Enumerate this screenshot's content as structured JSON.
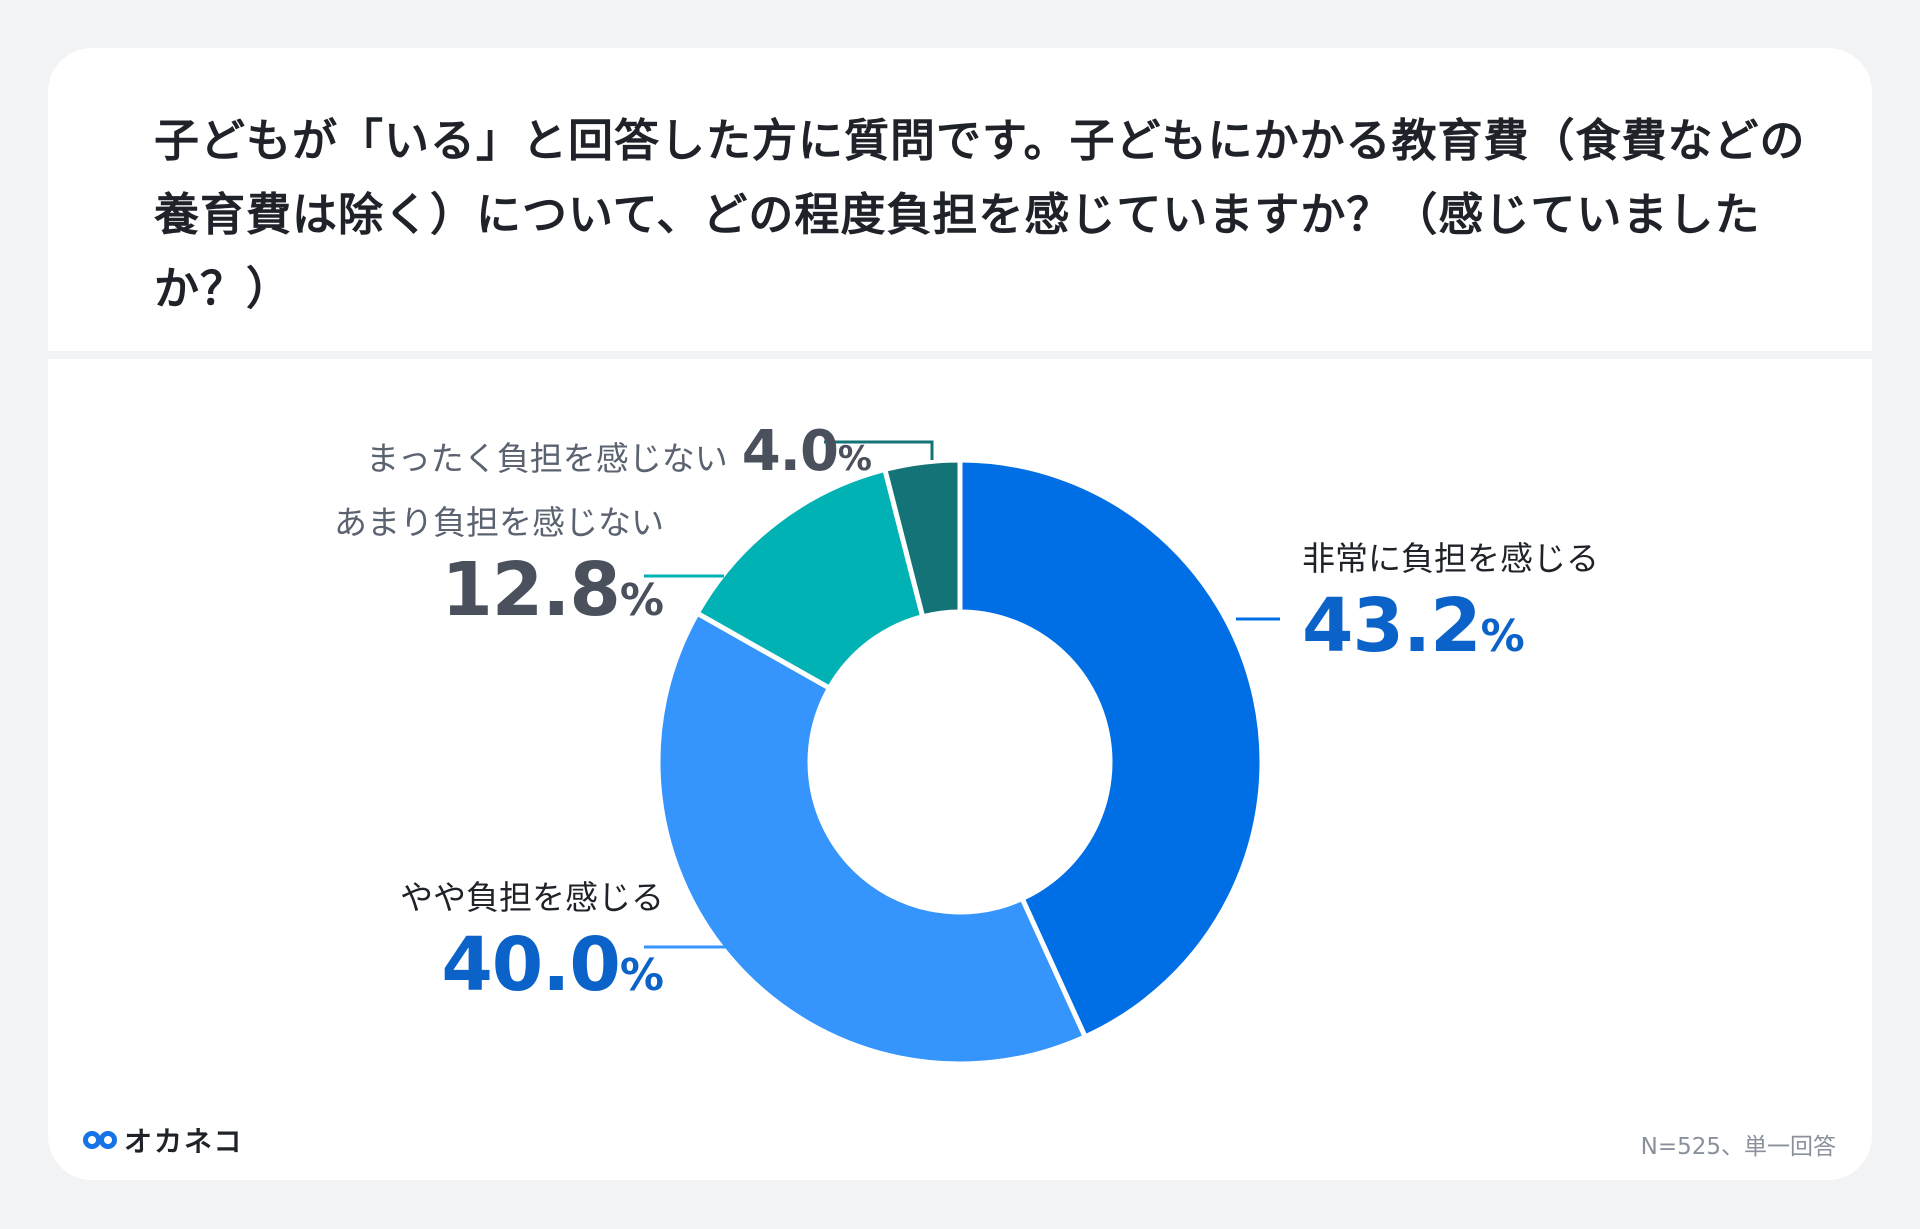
{
  "title": "子どもが「いる」と回答した方に質問です。子どもにかかる教育費（食費などの養育費は除く）について、どの程度負担を感じていますか？（感じていましたか？）",
  "footer": {
    "brand": "オカネコ",
    "note": "N=525、単一回答"
  },
  "colors": {
    "series_1": "#006fe5",
    "series_2": "#3595fc",
    "series_3": "#00b2b4",
    "series_4": "#137376",
    "value_blue": "#0b63c9",
    "value_grey": "#4a515d"
  },
  "chart_data": {
    "type": "pie",
    "donut": true,
    "unit": "%",
    "categories": [
      "非常に負担を感じる",
      "やや負担を感じる",
      "あまり負担を感じない",
      "まったく負担を感じない"
    ],
    "values": [
      43.2,
      40.0,
      12.8,
      4.0
    ],
    "value_labels": [
      "43.2",
      "40.0",
      "12.8",
      "4.0"
    ],
    "start": "12 o'clock",
    "direction": "clockwise"
  }
}
